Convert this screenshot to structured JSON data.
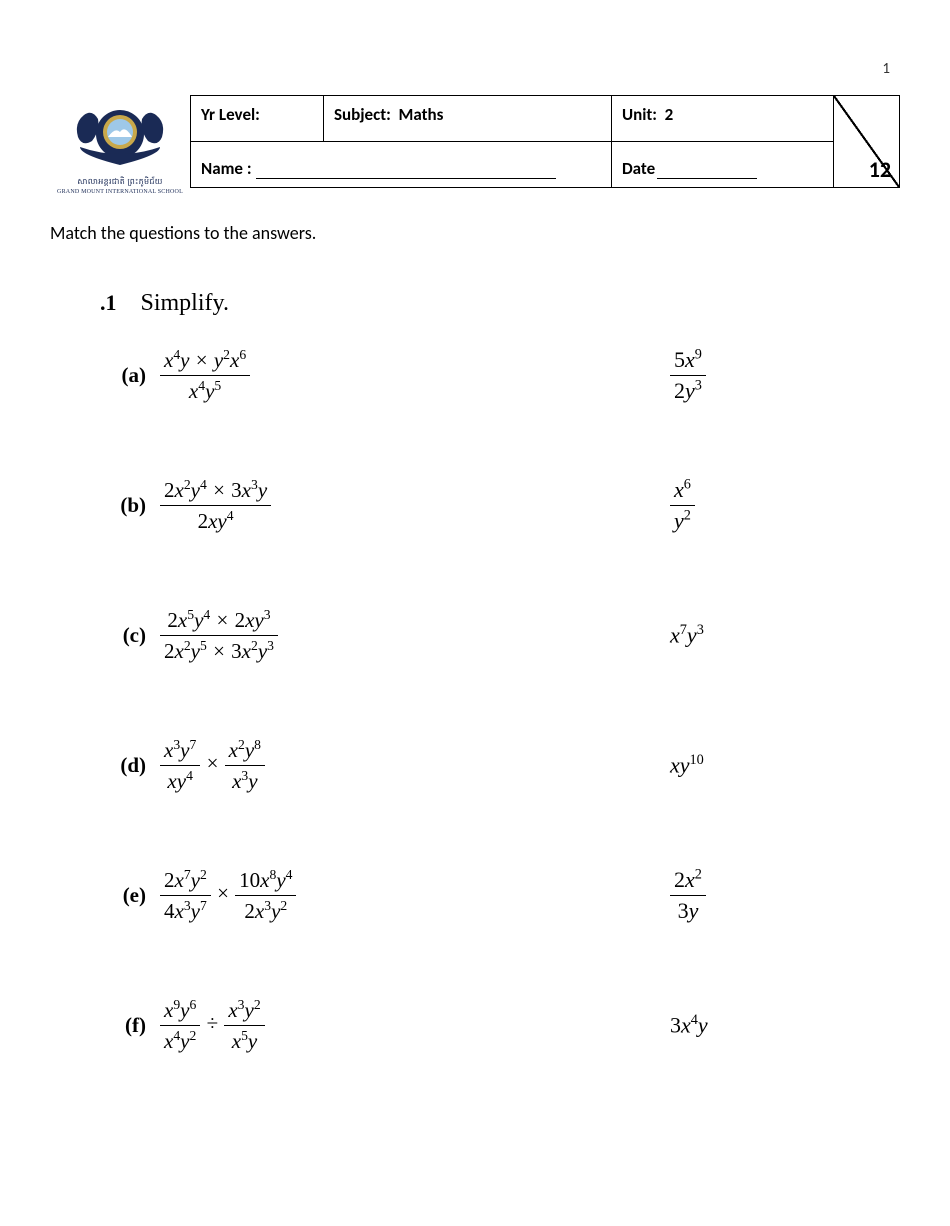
{
  "page_number": "1",
  "header": {
    "yr_level_label": "Yr Level:",
    "subject_label": "Subject:",
    "subject_value": "Maths",
    "unit_label": "Unit:",
    "unit_value": "2",
    "name_label": "Name :",
    "date_label": "Date",
    "score": "12"
  },
  "logo": {
    "khmer_text": "សាលាអន្តរជាតិ  ព្រះភូមិជ័យ",
    "english_text": "GRAND MOUNT INTERNATIONAL SCHOOL",
    "colors": {
      "primary": "#1a2a55",
      "accent": "#c9a84a",
      "sky": "#9ec8e8"
    }
  },
  "instruction": "Match the questions to the answers.",
  "question_number": ".1",
  "question_title": "Simplify.",
  "items": [
    {
      "letter": "(a)",
      "q_num": "x<sup>4</sup>y <span class='op'>×</span> y<sup>2</sup>x<sup>6</sup>",
      "q_den": "x<sup>4</sup>y<sup>5</sup>",
      "a_num": "<span class='upright'>5</span>x<sup>9</sup>",
      "a_den": "<span class='upright'>2</span>y<sup>3</sup>",
      "a_inline": null
    },
    {
      "letter": "(b)",
      "q_num": "<span class='upright'>2</span>x<sup>2</sup>y<sup>4</sup> <span class='op'>×</span> <span class='upright'>3</span>x<sup>3</sup>y",
      "q_den": "<span class='upright'>2</span>xy<sup>4</sup>",
      "a_num": "x<sup>6</sup>",
      "a_den": "y<sup>2</sup>",
      "a_inline": null
    },
    {
      "letter": "(c)",
      "q_num": "<span class='upright'>2</span>x<sup>5</sup>y<sup>4</sup> <span class='op'>×</span> <span class='upright'>2</span>xy<sup>3</sup>",
      "q_den": "<span class='upright'>2</span>x<sup>2</sup>y<sup>5</sup> <span class='op'>×</span> <span class='upright'>3</span>x<sup>2</sup>y<sup>3</sup>",
      "a_num": null,
      "a_den": null,
      "a_inline": "x<sup>7</sup>y<sup>3</sup>"
    },
    {
      "letter": "(d)",
      "q_special": "<span class='frac'><span class='num'>x<sup>3</sup>y<sup>7</sup></span><span class='den'>xy<sup>4</sup></span></span> <span class='op'>×</span> <span class='frac'><span class='num'>x<sup>2</sup>y<sup>8</sup></span><span class='den'>x<sup>3</sup>y</span></span>",
      "a_inline": "xy<sup>10</sup>"
    },
    {
      "letter": "(e)",
      "q_special": "<span class='frac'><span class='num'><span class='upright'>2</span>x<sup>7</sup>y<sup>2</sup></span><span class='den'><span class='upright'>4</span>x<sup>3</sup>y<sup>7</sup></span></span> <span class='op'>×</span> <span class='frac'><span class='num'><span class='upright'>10</span>x<sup>8</sup>y<sup>4</sup></span><span class='den'><span class='upright'>2</span>x<sup>3</sup>y<sup>2</sup></span></span>",
      "a_num": "<span class='upright'>2</span>x<sup>2</sup>",
      "a_den": "<span class='upright'>3</span>y",
      "a_inline": null
    },
    {
      "letter": "(f)",
      "q_special": "<span class='frac'><span class='num'>x<sup>9</sup>y<sup>6</sup></span><span class='den'>x<sup>4</sup>y<sup>2</sup></span></span> <span class='op'>÷</span> <span class='frac'><span class='num'>x<sup>3</sup>y<sup>2</sup></span><span class='den'>x<sup>5</sup>y</span></span>",
      "a_inline": "<span class='upright'>3</span>x<sup>4</sup>y"
    }
  ]
}
